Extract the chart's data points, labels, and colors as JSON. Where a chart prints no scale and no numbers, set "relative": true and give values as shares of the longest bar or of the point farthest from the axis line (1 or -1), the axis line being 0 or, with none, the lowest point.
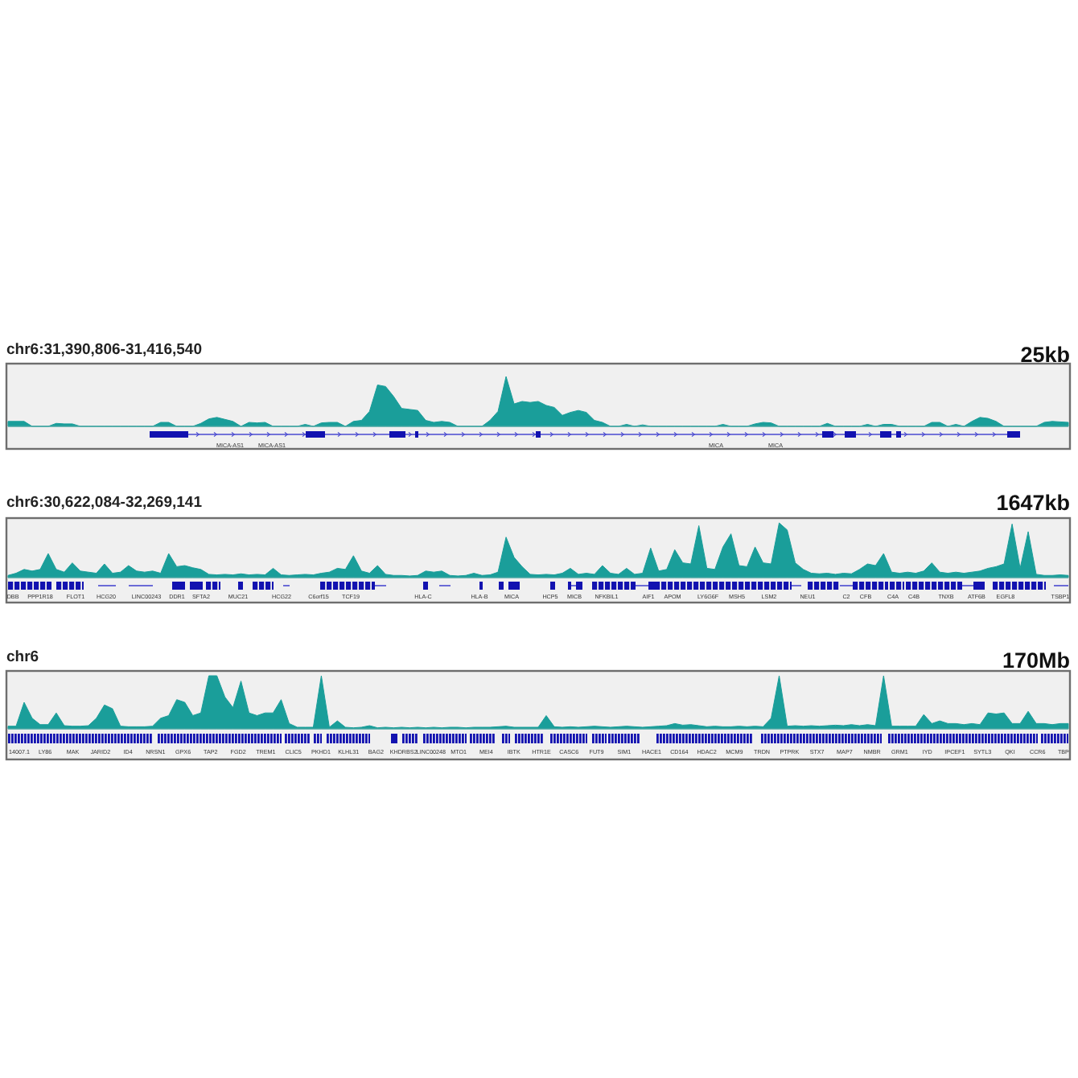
{
  "chart_data": [
    {
      "type": "area",
      "title": "chr6:31,390,806-31,416,540",
      "subtitle": "25kb",
      "relative": true,
      "color": "#1a9e9a",
      "categories": [
        null,
        null,
        null,
        null,
        null,
        null,
        null,
        null,
        null,
        null,
        null,
        null,
        null,
        null,
        null,
        null,
        null,
        null,
        null,
        null,
        null,
        null,
        null,
        null,
        null,
        null,
        null,
        null,
        null,
        null,
        null,
        null,
        null,
        null,
        null,
        null,
        null,
        null,
        null,
        null,
        null,
        null,
        null,
        null,
        null,
        null,
        null,
        null,
        null,
        null,
        null,
        null,
        null,
        null,
        null,
        null,
        null,
        null,
        null,
        null,
        null,
        null,
        null,
        null,
        null,
        null,
        null,
        null,
        null,
        null,
        null,
        null,
        null,
        null,
        null,
        null,
        null,
        null,
        null,
        null,
        null,
        null,
        null,
        null,
        null,
        null,
        null,
        null,
        null,
        null,
        null,
        null,
        null,
        null,
        null,
        null,
        null,
        null,
        null,
        null,
        null,
        null,
        null,
        null,
        null,
        null,
        null,
        null,
        null,
        null,
        null,
        null,
        null,
        null,
        null,
        null,
        null,
        null,
        null,
        null,
        null,
        null,
        null,
        null,
        null,
        null,
        null,
        null,
        null,
        null,
        null,
        null,
        null
      ],
      "values": [
        0.1,
        0.1,
        0.1,
        0,
        0,
        0,
        0.06,
        0.05,
        0.05,
        0,
        0,
        0,
        0,
        0,
        0,
        0,
        0,
        0,
        0,
        0.08,
        0.08,
        0,
        0,
        0,
        0.06,
        0.15,
        0.18,
        0.14,
        0.1,
        0,
        0.08,
        0.07,
        0.08,
        0,
        0,
        0,
        0,
        0.04,
        0,
        0.07,
        0.08,
        0.08,
        0,
        0.1,
        0.12,
        0.3,
        0.83,
        0.8,
        0.6,
        0.36,
        0.34,
        0.32,
        0.12,
        0.08,
        0.1,
        0.08,
        0,
        0,
        0,
        0,
        0.12,
        0.3,
        1,
        0.45,
        0.5,
        0.48,
        0.5,
        0.42,
        0.38,
        0.22,
        0.28,
        0.32,
        0.28,
        0.12,
        0.08,
        0,
        0,
        0.04,
        0,
        0.03,
        0,
        0,
        0,
        0,
        0,
        0,
        0,
        0,
        0,
        0.04,
        0,
        0,
        0,
        0.05,
        0.08,
        0.07,
        0,
        0,
        0,
        0,
        0,
        0,
        0.06,
        0,
        0,
        0,
        0,
        0.04,
        0,
        0.04,
        0.04,
        0,
        0,
        0,
        0,
        0.08,
        0.08,
        0,
        0.04,
        0,
        0.1,
        0.18,
        0.16,
        0.1,
        0,
        0,
        0,
        0,
        0,
        0.08,
        0.1,
        0.09,
        0.08
      ],
      "annotations": [
        "MICA-AS1",
        "MICA-AS1",
        "MICA",
        "MICA"
      ]
    },
    {
      "type": "area",
      "title": "chr6:30,622,084-32,269,141",
      "subtitle": "1647kb",
      "relative": true,
      "color": "#1a9e9a",
      "categories": [
        null,
        null,
        null,
        null,
        null,
        null,
        null,
        null,
        null,
        null,
        null,
        null,
        null,
        null,
        null,
        null,
        null,
        null,
        null,
        null,
        null,
        null,
        null,
        null,
        null,
        null,
        null,
        null,
        null,
        null,
        null,
        null,
        null,
        null,
        null,
        null,
        null,
        null,
        null,
        null,
        null,
        null,
        null,
        null,
        null,
        null,
        null,
        null,
        null,
        null,
        null,
        null,
        null,
        null,
        null,
        null,
        null,
        null,
        null,
        null,
        null,
        null,
        null,
        null,
        null,
        null,
        null,
        null,
        null,
        null,
        null,
        null,
        null,
        null,
        null,
        null,
        null,
        null,
        null,
        null,
        null,
        null,
        null,
        null,
        null,
        null,
        null,
        null,
        null,
        null,
        null,
        null,
        null,
        null,
        null,
        null,
        null,
        null,
        null,
        null,
        null,
        null,
        null,
        null,
        null,
        null,
        null,
        null,
        null,
        null,
        null,
        null,
        null,
        null,
        null,
        null,
        null,
        null,
        null,
        null,
        null,
        null,
        null,
        null,
        null,
        null,
        null,
        null,
        null,
        null,
        null,
        null,
        null
      ],
      "values": [
        0.04,
        0.08,
        0.15,
        0.12,
        0.15,
        0.44,
        0.15,
        0.1,
        0.27,
        0.12,
        0.1,
        0.08,
        0.25,
        0.08,
        0.1,
        0.22,
        0.12,
        0.1,
        0.12,
        0.08,
        0.44,
        0.2,
        0.22,
        0.18,
        0.15,
        0.06,
        0.05,
        0.06,
        0.05,
        0.07,
        0.05,
        0.06,
        0.05,
        0.17,
        0.05,
        0.04,
        0.05,
        0.06,
        0.05,
        0.08,
        0.1,
        0.17,
        0.15,
        0.4,
        0.12,
        0.08,
        0.22,
        0.06,
        0.04,
        0.04,
        0.03,
        0.04,
        0.12,
        0.1,
        0.12,
        0.04,
        0.03,
        0.04,
        0.08,
        0.04,
        0.05,
        0.1,
        0.74,
        0.37,
        0.2,
        0.06,
        0.05,
        0.06,
        0.05,
        0.08,
        0.17,
        0.06,
        0.08,
        0.06,
        0.22,
        0.08,
        0.06,
        0.17,
        0.06,
        0.08,
        0.54,
        0.12,
        0.15,
        0.51,
        0.27,
        0.25,
        0.95,
        0.17,
        0.15,
        0.56,
        0.8,
        0.22,
        0.2,
        0.56,
        0.27,
        0.25,
        1,
        0.87,
        0.27,
        0.15,
        0.08,
        0.07,
        0.08,
        0.06,
        0.08,
        0.07,
        0.15,
        0.25,
        0.22,
        0.44,
        0.1,
        0.08,
        0.1,
        0.08,
        0.12,
        0.27,
        0.1,
        0.08,
        0.1,
        0.08,
        0.1,
        0.12,
        0.17,
        0.2,
        0.25,
        0.98,
        0.17,
        0.84,
        0.06,
        0.04,
        0.04,
        0.05,
        0.04
      ],
      "annotations": [
        "DBB",
        "PPP1R18",
        "FLOT1",
        "HCG20",
        "LINC00243",
        "DDR1",
        "SFTA2",
        "MUC21",
        "HCG22",
        "C6orf15",
        "TCF19",
        "HLA-C",
        "HLA-B",
        "MICA",
        "HCP5",
        "MICB",
        "NFKBIL1",
        "AIF1",
        "APOM",
        "LY6G6F",
        "MSH5",
        "LSM2",
        "NEU1",
        "C2",
        "CFB",
        "C4A",
        "C4B",
        "TNXB",
        "ATF6B",
        "EGFL8",
        "TSBP1"
      ]
    },
    {
      "type": "area",
      "title": "chr6",
      "subtitle": "170Mb",
      "relative": true,
      "color": "#1a9e9a",
      "categories": [
        null,
        null,
        null,
        null,
        null,
        null,
        null,
        null,
        null,
        null,
        null,
        null,
        null,
        null,
        null,
        null,
        null,
        null,
        null,
        null,
        null,
        null,
        null,
        null,
        null,
        null,
        null,
        null,
        null,
        null,
        null,
        null,
        null,
        null,
        null,
        null,
        null,
        null,
        null,
        null,
        null,
        null,
        null,
        null,
        null,
        null,
        null,
        null,
        null,
        null,
        null,
        null,
        null,
        null,
        null,
        null,
        null,
        null,
        null,
        null,
        null,
        null,
        null,
        null,
        null,
        null,
        null,
        null,
        null,
        null,
        null,
        null,
        null,
        null,
        null,
        null,
        null,
        null,
        null,
        null,
        null,
        null,
        null,
        null,
        null,
        null,
        null,
        null,
        null,
        null,
        null,
        null,
        null,
        null,
        null,
        null,
        null,
        null,
        null,
        null,
        null,
        null,
        null,
        null,
        null,
        null,
        null,
        null,
        null,
        null,
        null,
        null,
        null,
        null,
        null,
        null,
        null,
        null,
        null,
        null,
        null,
        null,
        null,
        null,
        null,
        null,
        null,
        null,
        null,
        null,
        null,
        null,
        null
      ],
      "values": [
        0.05,
        0.05,
        0.5,
        0.2,
        0.08,
        0.08,
        0.3,
        0.06,
        0.05,
        0.05,
        0.06,
        0.2,
        0.45,
        0.38,
        0.05,
        0.04,
        0.04,
        0.04,
        0.05,
        0.2,
        0.25,
        0.55,
        0.5,
        0.25,
        0.3,
        1,
        1,
        0.6,
        0.4,
        0.9,
        0.3,
        0.25,
        0.3,
        0.3,
        0.55,
        0.1,
        0.03,
        0.03,
        0.03,
        1,
        0.03,
        0.15,
        0.03,
        0.02,
        0.03,
        0.06,
        0.02,
        0.03,
        0.02,
        0.03,
        0.02,
        0.03,
        0.02,
        0.03,
        0.02,
        0.03,
        0.03,
        0.02,
        0.03,
        0.03,
        0.03,
        0.04,
        0.05,
        0.03,
        0.03,
        0.03,
        0.03,
        0.25,
        0.04,
        0.03,
        0.04,
        0.03,
        0.04,
        0.05,
        0.04,
        0.03,
        0.04,
        0.05,
        0.04,
        0.03,
        0.04,
        0.05,
        0.06,
        0.1,
        0.07,
        0.08,
        0.06,
        0.04,
        0.05,
        0.04,
        0.04,
        0.05,
        0.04,
        0.05,
        0.04,
        0.2,
        1,
        0.05,
        0.06,
        0.05,
        0.06,
        0.05,
        0.06,
        0.07,
        0.06,
        0.08,
        0.06,
        0.08,
        0.06,
        1,
        0.05,
        0.05,
        0.05,
        0.05,
        0.27,
        0.1,
        0.15,
        0.1,
        0.1,
        0.08,
        0.1,
        0.08,
        0.3,
        0.28,
        0.3,
        0.1,
        0.1,
        0.33,
        0.1,
        0.1,
        0.08,
        0.1,
        0.1
      ],
      "annotations": [
        "14007.1",
        "LY86",
        "MAK",
        "JARID2",
        "ID4",
        "NRSN1",
        "GPX6",
        "TAP2",
        "FGD2",
        "TREM1",
        "CLIC5",
        "PKHD1",
        "KLHL31",
        "BAG2",
        "KHDRBS2",
        "LINC00248",
        "MTO1",
        "MEI4",
        "IBTK",
        "HTR1E",
        "CASC6",
        "FUT9",
        "SIM1",
        "HACE1",
        "CD164",
        "HDAC2",
        "MCM9",
        "TRDN",
        "PTPRK",
        "STX7",
        "MAP7",
        "NMBR",
        "GRM1",
        "IYD",
        "IPCEF1",
        "SYTL3",
        "QKI",
        "CCR6",
        "TBP"
      ]
    }
  ]
}
